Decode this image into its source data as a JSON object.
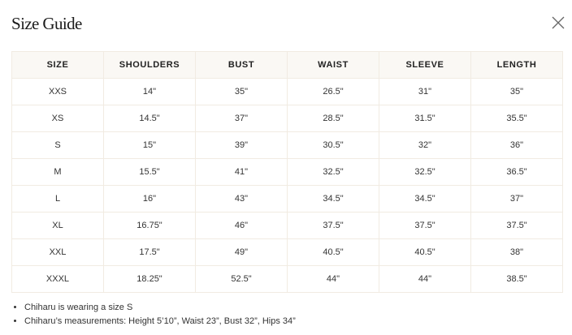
{
  "title": "Size Guide",
  "close_icon": "close-icon",
  "table": {
    "headers": [
      "SIZE",
      "SHOULDERS",
      "BUST",
      "WAIST",
      "SLEEVE",
      "LENGTH"
    ],
    "rows": [
      [
        "XXS",
        "14\"",
        "35\"",
        "26.5\"",
        "31\"",
        "35\""
      ],
      [
        "XS",
        "14.5\"",
        "37\"",
        "28.5\"",
        "31.5\"",
        "35.5\""
      ],
      [
        "S",
        "15\"",
        "39\"",
        "30.5\"",
        "32\"",
        "36\""
      ],
      [
        "M",
        "15.5\"",
        "41\"",
        "32.5\"",
        "32.5\"",
        "36.5\""
      ],
      [
        "L",
        "16\"",
        "43\"",
        "34.5\"",
        "34.5\"",
        "37\""
      ],
      [
        "XL",
        "16.75\"",
        "46\"",
        "37.5\"",
        "37.5\"",
        "37.5\""
      ],
      [
        "XXL",
        "17.5\"",
        "49\"",
        "40.5\"",
        "40.5\"",
        "38\""
      ],
      [
        "XXXL",
        "18.25\"",
        "52.5\"",
        "44\"",
        "44\"",
        "38.5\""
      ]
    ]
  },
  "notes": [
    "Chiharu is wearing a size S",
    "Chiharu’s measurements: Height 5’10”, Waist 23”, Bust 32”, Hips 34”"
  ]
}
